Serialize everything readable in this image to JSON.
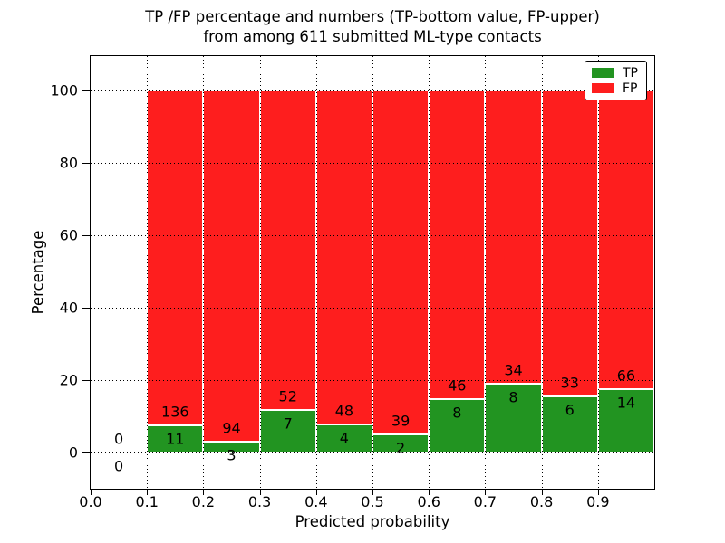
{
  "title": {
    "line1": "TP /FP percentage and numbers (TP-bottom value, FP-upper)",
    "line2": "from among 611 submitted ML-type contacts"
  },
  "axes": {
    "xlabel": "Predicted probability",
    "ylabel": "Percentage"
  },
  "colors": {
    "tp": "#229421",
    "fp": "#fe1e1e",
    "grid": "#000000",
    "text": "#000000",
    "background": "#ffffff"
  },
  "chart_data": {
    "type": "bar",
    "subtype": "stacked-percentage-histogram",
    "title": "TP /FP percentage and numbers (TP-bottom value, FP-upper)\nfrom among 611 submitted ML-type contacts",
    "xlabel": "Predicted probability",
    "ylabel": "Percentage",
    "total_contacts": 611,
    "bin_edges": [
      0.0,
      0.1,
      0.2,
      0.3,
      0.4,
      0.5,
      0.6,
      0.7,
      0.8,
      0.9,
      1.0
    ],
    "series": [
      {
        "name": "TP",
        "color": "#229421",
        "counts": [
          0,
          11,
          3,
          7,
          4,
          2,
          8,
          8,
          6,
          14
        ]
      },
      {
        "name": "FP",
        "color": "#fe1e1e",
        "counts": [
          0,
          136,
          94,
          52,
          48,
          39,
          46,
          34,
          33,
          66
        ]
      }
    ],
    "tp_percent_by_bin": [
      null,
      7.48,
      3.09,
      11.86,
      7.69,
      4.88,
      14.81,
      19.05,
      15.38,
      17.5
    ],
    "x_ticks": [
      "0.0",
      "0.1",
      "0.2",
      "0.3",
      "0.4",
      "0.5",
      "0.6",
      "0.7",
      "0.8",
      "0.9"
    ],
    "y_ticks": [
      "0",
      "20",
      "40",
      "60",
      "80",
      "100"
    ],
    "xlim": [
      0.0,
      1.0
    ],
    "ylim": [
      -10,
      109.5
    ],
    "grid": "dotted, both axes, drawn above bars",
    "bar_edge_color": "#ffffff",
    "legend_position": "upper right",
    "legend_entries": [
      {
        "label": "TP",
        "color": "#229421"
      },
      {
        "label": "FP",
        "color": "#fe1e1e"
      }
    ]
  }
}
